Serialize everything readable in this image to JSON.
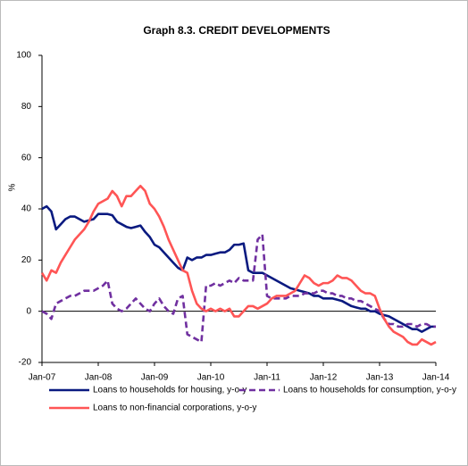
{
  "chart_data": {
    "type": "line",
    "title": "Graph 8.3. CREDIT DEVELOPMENTS",
    "y_label": "%",
    "categories": [
      "Jan-07",
      null,
      null,
      null,
      null,
      null,
      null,
      null,
      null,
      null,
      null,
      null,
      "Jan-08",
      null,
      null,
      null,
      null,
      null,
      null,
      null,
      null,
      null,
      null,
      null,
      "Jan-09",
      null,
      null,
      null,
      null,
      null,
      null,
      null,
      null,
      null,
      null,
      null,
      "Jan-10",
      null,
      null,
      null,
      null,
      null,
      null,
      null,
      null,
      null,
      null,
      null,
      "Jan-11",
      null,
      null,
      null,
      null,
      null,
      null,
      null,
      null,
      null,
      null,
      null,
      "Jan-12",
      null,
      null,
      null,
      null,
      null,
      null,
      null,
      null,
      null,
      null,
      null,
      "Jan-13",
      null,
      null,
      null,
      null,
      null,
      null,
      null,
      null,
      null,
      null,
      null,
      "Jan-14"
    ],
    "series": [
      {
        "name": "Loans to households for housing, y-o-y",
        "color": "#0a1a80",
        "linestyle": "solid",
        "values": [
          40,
          41,
          39,
          32,
          34,
          36,
          37,
          37,
          36,
          35,
          35.5,
          36,
          38,
          38,
          38,
          37.5,
          35,
          34,
          33,
          32.5,
          33,
          33.5,
          31,
          29,
          26,
          25,
          23,
          21,
          19,
          17,
          16,
          21,
          20,
          21,
          21,
          22,
          22,
          22.5,
          23,
          23,
          24,
          26,
          26,
          26.5,
          16,
          15,
          15,
          15,
          14,
          13,
          12,
          11,
          10,
          9,
          8.5,
          8,
          7.5,
          7,
          6,
          6,
          5,
          5,
          5,
          4.5,
          4,
          3,
          2,
          1.5,
          1,
          1,
          0,
          0,
          -1,
          -1.5,
          -2,
          -3,
          -4,
          -5,
          -6,
          -7,
          -7,
          -8,
          -7,
          -6,
          -6
        ]
      },
      {
        "name": "Loans to households for consumption, y-o-y",
        "color": "#7030a0",
        "linestyle": "dashed",
        "values": [
          0,
          -1,
          -3,
          3,
          4,
          5,
          6,
          6,
          7,
          8,
          8,
          8,
          9,
          10,
          12,
          3,
          1,
          0,
          1,
          3,
          5,
          3,
          1,
          0,
          3,
          5,
          2,
          0,
          -1,
          5,
          6,
          -9,
          -10,
          -11,
          -12,
          10,
          10,
          11,
          10,
          11,
          12,
          11,
          13,
          12,
          12,
          12,
          28,
          30,
          6,
          5,
          5,
          5,
          5,
          6,
          6,
          6,
          7,
          7,
          7,
          8,
          8,
          7,
          7,
          6,
          6,
          5,
          5,
          4,
          4,
          3,
          2,
          1,
          0,
          -3,
          -5,
          -5,
          -6,
          -6,
          -5,
          -5,
          -6,
          -5,
          -5,
          -6,
          -6
        ]
      },
      {
        "name": "Loans to non-financial corporations, y-o-y",
        "color": "#ff5555",
        "linestyle": "solid",
        "values": [
          15,
          12,
          16,
          15,
          19,
          22,
          25,
          28,
          30,
          32,
          35,
          39,
          42,
          43,
          44,
          47,
          45,
          41,
          45,
          45,
          47,
          49,
          47,
          42,
          40,
          37,
          33,
          28,
          24,
          20,
          16,
          15,
          8,
          3,
          1,
          0,
          1,
          0,
          1,
          0,
          1,
          -2,
          -2,
          0,
          2,
          2,
          1,
          2,
          3,
          5,
          6,
          6,
          6,
          7,
          8,
          11,
          14,
          13,
          11,
          10,
          11,
          11,
          12,
          14,
          13,
          13,
          12,
          10,
          8,
          7,
          7,
          6,
          1,
          -3,
          -6,
          -8,
          -9,
          -10,
          -12,
          -13,
          -13,
          -11,
          -12,
          -13,
          -12
        ]
      }
    ],
    "ylim": [
      -20,
      100
    ],
    "yticks": [
      -20,
      0,
      20,
      40,
      60,
      80,
      100
    ],
    "zero_line": true,
    "grid": false
  }
}
